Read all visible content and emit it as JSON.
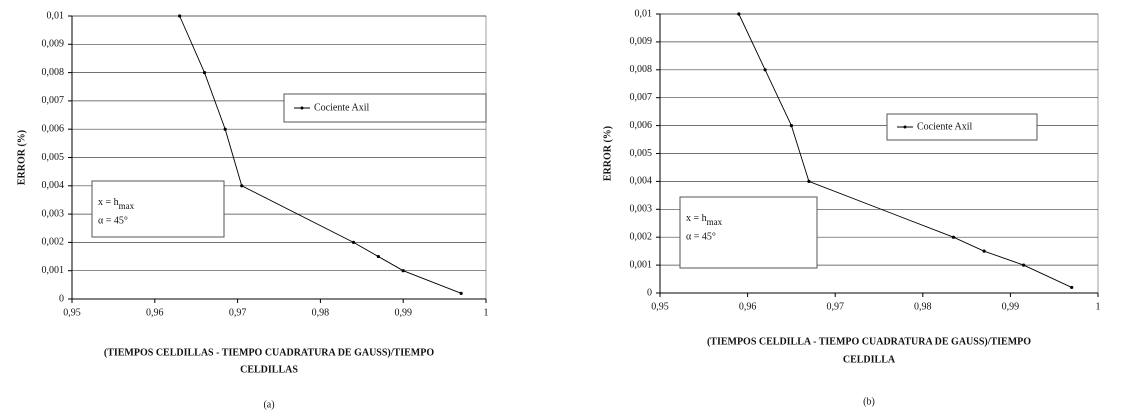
{
  "chart_data": [
    {
      "type": "line",
      "ylabel": "ERROR (%)",
      "xlabel_lines": [
        "(TIEMPOS CELDILLAS - TIEMPO CUADRATURA DE GAUSS)/TIEMPO",
        "CELDILLAS"
      ],
      "caption": "(a)",
      "x": [
        0.963,
        0.966,
        0.9685,
        0.9705,
        0.984,
        0.987,
        0.99,
        0.997
      ],
      "series": [
        {
          "name": "Cociente Axil",
          "color": "#000000",
          "values": [
            0.01,
            0.008,
            0.006,
            0.004,
            0.002,
            0.0015,
            0.001,
            0.0002
          ]
        }
      ],
      "xlim": [
        0.95,
        1
      ],
      "xticks": [
        {
          "value": 0.95,
          "label": "0,95"
        },
        {
          "value": 0.96,
          "label": "0,96"
        },
        {
          "value": 0.97,
          "label": "0,97"
        },
        {
          "value": 0.98,
          "label": "0,98"
        },
        {
          "value": 0.99,
          "label": "0,99"
        },
        1
      ],
      "ylim": [
        0,
        0.01
      ],
      "yticks": [
        0,
        {
          "value": 0.001,
          "label": "0,001"
        },
        {
          "value": 0.002,
          "label": "0,002"
        },
        {
          "value": 0.003,
          "label": "0,003"
        },
        {
          "value": 0.004,
          "label": "0,004"
        },
        {
          "value": 0.005,
          "label": "0,005"
        },
        {
          "value": 0.006,
          "label": "0,006"
        },
        {
          "value": 0.007,
          "label": "0,007"
        },
        {
          "value": 0.008,
          "label": "0,008"
        },
        {
          "value": 0.009,
          "label": "0,009"
        },
        {
          "value": 0.01,
          "label": "0,01"
        }
      ],
      "grid": true,
      "annotation": {
        "text": "x = h",
        "subscript": "max",
        "note": "α = 45°"
      }
    },
    {
      "type": "line",
      "ylabel": "ERROR (%)",
      "xlabel_lines": [
        "(TIEMPOS CELDILLA - TIEMPO  CUADRATURA DE GAUSS)/TIEMPO",
        "CELDILLA"
      ],
      "caption": "(b)",
      "x": [
        0.959,
        0.962,
        0.965,
        0.967,
        0.9835,
        0.987,
        0.9915,
        0.997
      ],
      "series": [
        {
          "name": "Cociente Axil",
          "color": "#000000",
          "values": [
            0.01,
            0.008,
            0.006,
            0.004,
            0.002,
            0.0015,
            0.001,
            0.0002
          ]
        }
      ],
      "xlim": [
        0.95,
        1
      ],
      "xticks": [
        {
          "value": 0.95,
          "label": "0,95"
        },
        {
          "value": 0.96,
          "label": "0,96"
        },
        {
          "value": 0.97,
          "label": "0,97"
        },
        {
          "value": 0.98,
          "label": "0,98"
        },
        {
          "value": 0.99,
          "label": "0,99"
        },
        1
      ],
      "ylim": [
        0,
        0.01
      ],
      "yticks": [
        0,
        {
          "value": 0.001,
          "label": "0,001"
        },
        {
          "value": 0.002,
          "label": "0,002"
        },
        {
          "value": 0.003,
          "label": "0,003"
        },
        {
          "value": 0.004,
          "label": "0,004"
        },
        {
          "value": 0.005,
          "label": "0,005"
        },
        {
          "value": 0.006,
          "label": "0,006"
        },
        {
          "value": 0.007,
          "label": "0,007"
        },
        {
          "value": 0.008,
          "label": "0,008"
        },
        {
          "value": 0.009,
          "label": "0,009"
        },
        {
          "value": 0.01,
          "label": "0,01"
        }
      ],
      "grid": true,
      "annotation": {
        "text": "x = h",
        "subscript": "max",
        "note": "α = 45°"
      }
    }
  ]
}
